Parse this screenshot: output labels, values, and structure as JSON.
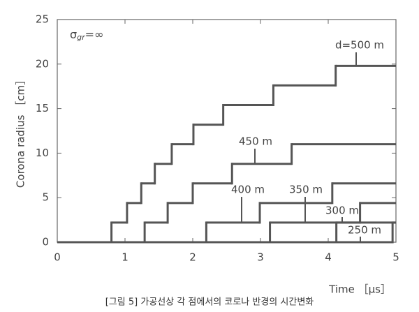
{
  "chart_data": {
    "type": "step",
    "xlabel": "Time ［µs］",
    "ylabel": "Corona radius ［cm］",
    "annotation": {
      "symbol": "σ",
      "subscript": "gr",
      "rest": "=∞"
    },
    "caption": "[그림 5] 가공선상 각 점에서의 코로나 반경의 시간변화",
    "xlim": [
      0,
      5
    ],
    "xticks": [
      0,
      1,
      2,
      3,
      4,
      5
    ],
    "ylim": [
      0,
      25
    ],
    "yticks": [
      0,
      5,
      10,
      15,
      20,
      25
    ],
    "color": "#555555",
    "series": [
      {
        "name": "d=500 m",
        "x": [
          0,
          0.8,
          1.03,
          1.24,
          1.44,
          1.69,
          2.01,
          2.45,
          3.19,
          4.11
        ],
        "values": [
          0,
          2.2,
          4.4,
          6.6,
          8.8,
          11,
          13.2,
          15.4,
          17.6,
          19.8
        ]
      },
      {
        "name": "450 m",
        "x": [
          0,
          1.29,
          1.63,
          2.0,
          2.58,
          3.46
        ],
        "values": [
          0,
          2.2,
          4.4,
          6.6,
          8.8,
          11
        ]
      },
      {
        "name": "400 m",
        "x": [
          0,
          2.2,
          2.99,
          4.06
        ],
        "values": [
          0,
          2.2,
          4.4,
          6.6
        ]
      },
      {
        "name": "350 m",
        "x": [
          0,
          3.14,
          4.47
        ],
        "values": [
          0,
          2.2,
          4.4
        ]
      },
      {
        "name": "300 m",
        "x": [
          0,
          4.12
        ],
        "values": [
          0,
          2.2
        ]
      },
      {
        "name": "250 m",
        "x": [
          0,
          4.95
        ],
        "values": [
          0,
          2.2
        ]
      }
    ]
  }
}
